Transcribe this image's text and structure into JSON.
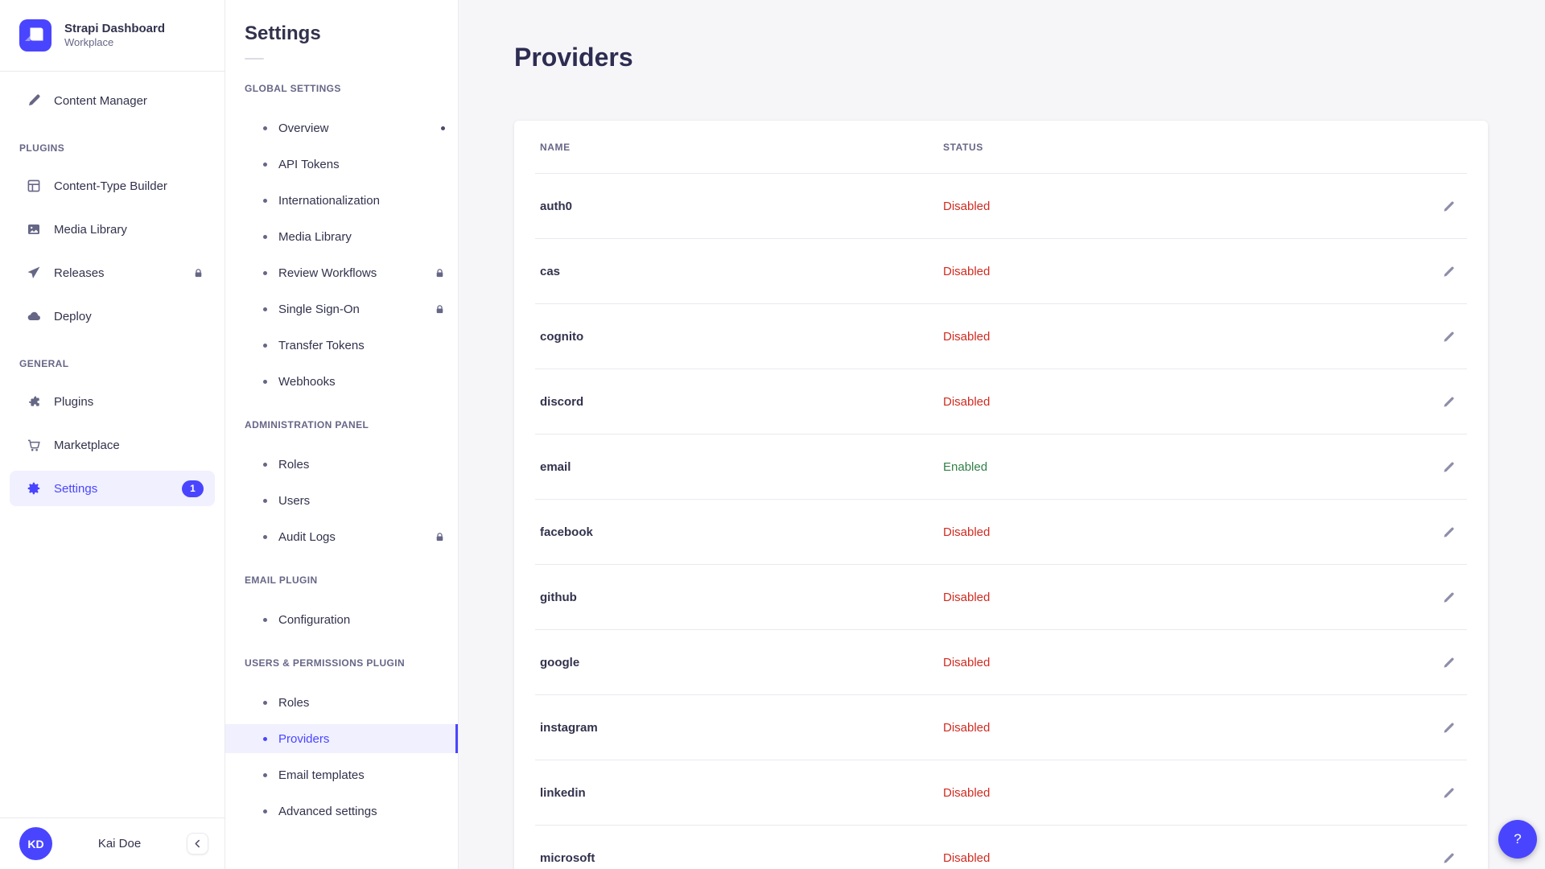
{
  "brand": {
    "title": "Strapi Dashboard",
    "subtitle": "Workplace",
    "logo_icon": "strapi-logo-icon"
  },
  "sidebar": {
    "top_item": {
      "label": "Content Manager",
      "icon": "pen-icon"
    },
    "sections": [
      {
        "header": "PLUGINS",
        "items": [
          {
            "label": "Content-Type Builder",
            "icon": "grid-icon"
          },
          {
            "label": "Media Library",
            "icon": "image-icon"
          },
          {
            "label": "Releases",
            "icon": "paper-plane-icon",
            "locked": true
          },
          {
            "label": "Deploy",
            "icon": "cloud-icon"
          }
        ]
      },
      {
        "header": "GENERAL",
        "items": [
          {
            "label": "Plugins",
            "icon": "puzzle-icon"
          },
          {
            "label": "Marketplace",
            "icon": "cart-icon"
          },
          {
            "label": "Settings",
            "icon": "gear-icon",
            "active": true,
            "badge": "1"
          }
        ]
      }
    ],
    "user": {
      "initials": "KD",
      "name": "Kai Doe",
      "collapse_icon": "chevron-left-icon"
    }
  },
  "subnav": {
    "title": "Settings",
    "sections": [
      {
        "header": "GLOBAL SETTINGS",
        "items": [
          {
            "label": "Overview",
            "dot": true
          },
          {
            "label": "API Tokens"
          },
          {
            "label": "Internationalization"
          },
          {
            "label": "Media Library"
          },
          {
            "label": "Review Workflows",
            "locked": true
          },
          {
            "label": "Single Sign-On",
            "locked": true
          },
          {
            "label": "Transfer Tokens"
          },
          {
            "label": "Webhooks"
          }
        ]
      },
      {
        "header": "ADMINISTRATION PANEL",
        "items": [
          {
            "label": "Roles"
          },
          {
            "label": "Users"
          },
          {
            "label": "Audit Logs",
            "locked": true
          }
        ]
      },
      {
        "header": "EMAIL PLUGIN",
        "items": [
          {
            "label": "Configuration"
          }
        ]
      },
      {
        "header": "USERS & PERMISSIONS PLUGIN",
        "items": [
          {
            "label": "Roles"
          },
          {
            "label": "Providers",
            "active": true
          },
          {
            "label": "Email templates"
          },
          {
            "label": "Advanced settings"
          }
        ]
      }
    ]
  },
  "main": {
    "title": "Providers",
    "table": {
      "columns": [
        "NAME",
        "STATUS"
      ],
      "rows": [
        {
          "name": "auth0",
          "status": "Disabled"
        },
        {
          "name": "cas",
          "status": "Disabled"
        },
        {
          "name": "cognito",
          "status": "Disabled"
        },
        {
          "name": "discord",
          "status": "Disabled"
        },
        {
          "name": "email",
          "status": "Enabled"
        },
        {
          "name": "facebook",
          "status": "Disabled"
        },
        {
          "name": "github",
          "status": "Disabled"
        },
        {
          "name": "google",
          "status": "Disabled"
        },
        {
          "name": "instagram",
          "status": "Disabled"
        },
        {
          "name": "linkedin",
          "status": "Disabled"
        },
        {
          "name": "microsoft",
          "status": "Disabled"
        }
      ]
    },
    "help_label": "?"
  },
  "colors": {
    "accent": "#4945ff",
    "accent_bg": "#f0f0ff",
    "status_disabled": "#d02b20",
    "status_enabled": "#328048",
    "border": "#eaeaef",
    "text": "#32324d",
    "muted": "#666687",
    "page_bg": "#f6f6f9"
  }
}
